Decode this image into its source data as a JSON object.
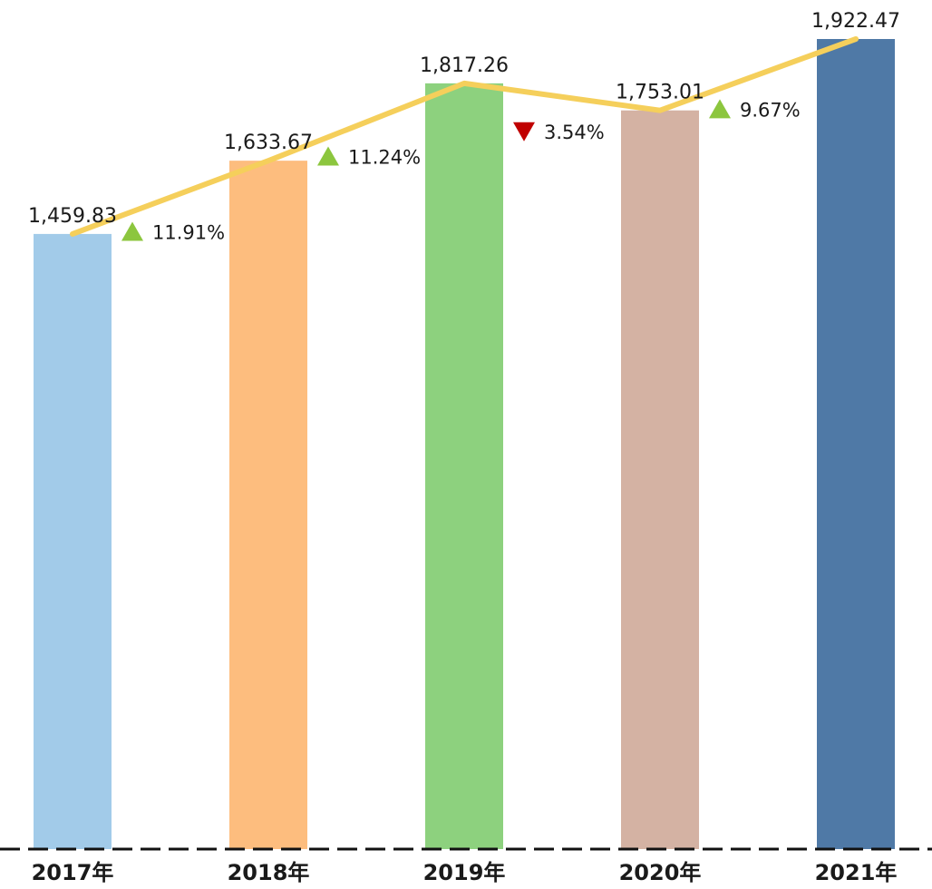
{
  "chart_data": {
    "type": "bar",
    "categories": [
      "2017年",
      "2018年",
      "2019年",
      "2020年",
      "2021年"
    ],
    "values": [
      1459.83,
      1633.67,
      1817.26,
      1753.01,
      1922.47
    ],
    "value_labels": [
      "1,459.83",
      "1,633.67",
      "1,817.26",
      "1,753.01",
      "1,922.47"
    ],
    "bar_colors": [
      "#a2cbe9",
      "#fdbd7e",
      "#8dd17e",
      "#d4b2a3",
      "#4f79a6"
    ],
    "growth": [
      {
        "label": "11.91%",
        "direction": "up"
      },
      {
        "label": "11.24%",
        "direction": "up"
      },
      {
        "label": "3.54%",
        "direction": "down"
      },
      {
        "label": "9.67%",
        "direction": "up"
      }
    ],
    "up_color": "#8cc63e",
    "down_color": "#c00000",
    "line_color": "#f5cf5b",
    "baseline_style": "dashed",
    "grid": false,
    "legend": "none",
    "title": "",
    "xlabel": "",
    "ylabel": "",
    "ylim": [
      0,
      1922.47
    ]
  }
}
